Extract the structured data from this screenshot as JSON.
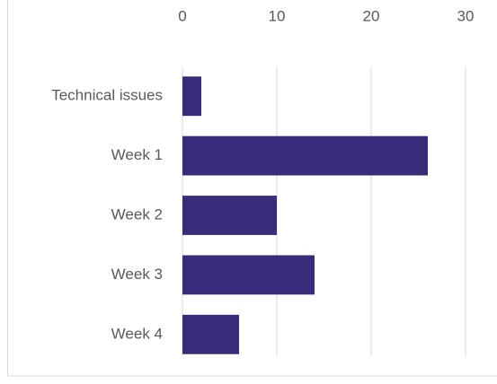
{
  "chart_data": {
    "type": "barh",
    "categories": [
      "Technical issues",
      "Week 1",
      "Week 2",
      "Week 3",
      "Week 4"
    ],
    "values": [
      2,
      26,
      10,
      14,
      6
    ],
    "color": "#372c7a",
    "xlim": [
      0,
      30
    ],
    "xticks": [
      0,
      10,
      20,
      30
    ],
    "grid": true
  }
}
